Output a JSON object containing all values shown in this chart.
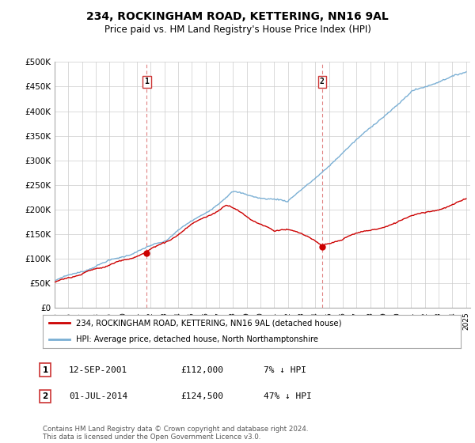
{
  "title": "234, ROCKINGHAM ROAD, KETTERING, NN16 9AL",
  "subtitle": "Price paid vs. HM Land Registry's House Price Index (HPI)",
  "ylim": [
    0,
    500000
  ],
  "yticks": [
    0,
    50000,
    100000,
    150000,
    200000,
    250000,
    300000,
    350000,
    400000,
    450000,
    500000
  ],
  "ytick_labels": [
    "£0",
    "£50K",
    "£100K",
    "£150K",
    "£200K",
    "£250K",
    "£300K",
    "£350K",
    "£400K",
    "£450K",
    "£500K"
  ],
  "x_start_year": 1995,
  "x_end_year": 2025,
  "sale1_date": 2001.72,
  "sale1_price": 112000,
  "sale1_label": "1",
  "sale2_date": 2014.5,
  "sale2_price": 124500,
  "sale2_label": "2",
  "red_color": "#cc0000",
  "blue_color": "#7aafd4",
  "dashed_line_color": "#e08080",
  "legend_entry1": "234, ROCKINGHAM ROAD, KETTERING, NN16 9AL (detached house)",
  "legend_entry2": "HPI: Average price, detached house, North Northamptonshire",
  "table_row1": [
    "1",
    "12-SEP-2001",
    "£112,000",
    "7% ↓ HPI"
  ],
  "table_row2": [
    "2",
    "01-JUL-2014",
    "£124,500",
    "47% ↓ HPI"
  ],
  "footnote": "Contains HM Land Registry data © Crown copyright and database right 2024.\nThis data is licensed under the Open Government Licence v3.0.",
  "background_color": "#ffffff",
  "grid_color": "#cccccc"
}
